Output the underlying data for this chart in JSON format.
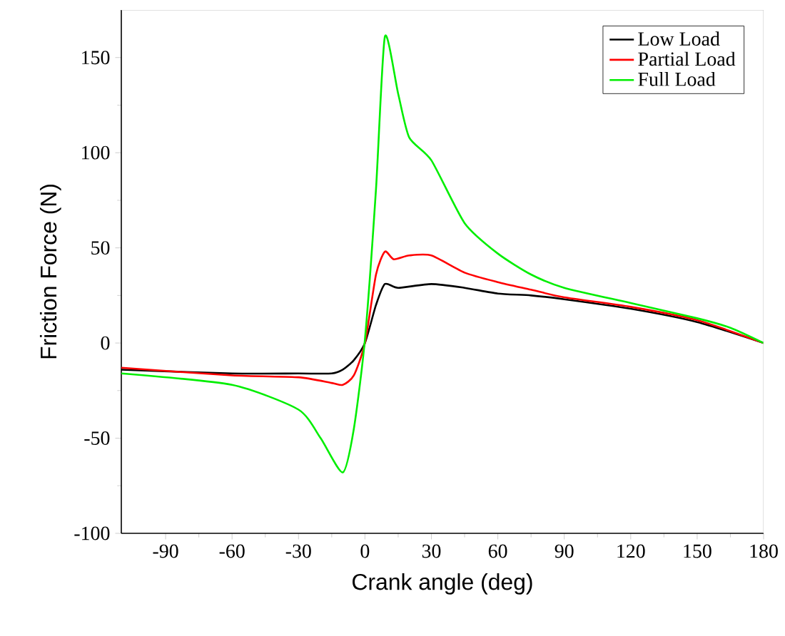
{
  "chart_data": {
    "type": "line",
    "xlabel": "Crank angle (deg)",
    "ylabel": "Friction Force (N)",
    "xlim": [
      -110,
      180
    ],
    "xticks": [
      -90,
      -60,
      -30,
      0,
      30,
      60,
      90,
      120,
      150,
      180
    ],
    "ylim": [
      -100,
      175
    ],
    "yticks": [
      -100,
      -50,
      0,
      50,
      100,
      150
    ],
    "grid": false,
    "legend": "top right",
    "marker": "none",
    "line_style": "solid",
    "series": [
      {
        "name": "Low Load",
        "color": "#000000",
        "x": [
          -110,
          -60,
          -30,
          -15,
          -10,
          -5,
          0,
          5,
          9,
          15,
          30,
          45,
          60,
          75,
          90,
          120,
          150,
          180
        ],
        "values": [
          -14,
          -16,
          -16,
          -16,
          -14,
          -9,
          0,
          20,
          31,
          29,
          31,
          29,
          26,
          25,
          23,
          18,
          11,
          0
        ]
      },
      {
        "name": "Partial Load",
        "color": "#ff0000",
        "x": [
          -110,
          -60,
          -30,
          -15,
          -10,
          -5,
          0,
          5,
          9,
          13,
          20,
          30,
          45,
          60,
          75,
          90,
          120,
          150,
          180
        ],
        "values": [
          -13,
          -17,
          -18,
          -21,
          -22,
          -17,
          0,
          36,
          48,
          44,
          46,
          46,
          37,
          32,
          28,
          24,
          19,
          12,
          0
        ]
      },
      {
        "name": "Full Load",
        "color": "#00ee00",
        "x": [
          -110,
          -60,
          -30,
          -20,
          -10,
          -5,
          0,
          5,
          9,
          15,
          20,
          30,
          45,
          60,
          75,
          90,
          120,
          150,
          165,
          180
        ],
        "values": [
          -16,
          -22,
          -35,
          -50,
          -68,
          -45,
          2,
          81,
          161,
          131,
          108,
          96,
          63,
          47,
          36,
          29,
          21,
          13,
          8,
          0
        ]
      }
    ]
  }
}
